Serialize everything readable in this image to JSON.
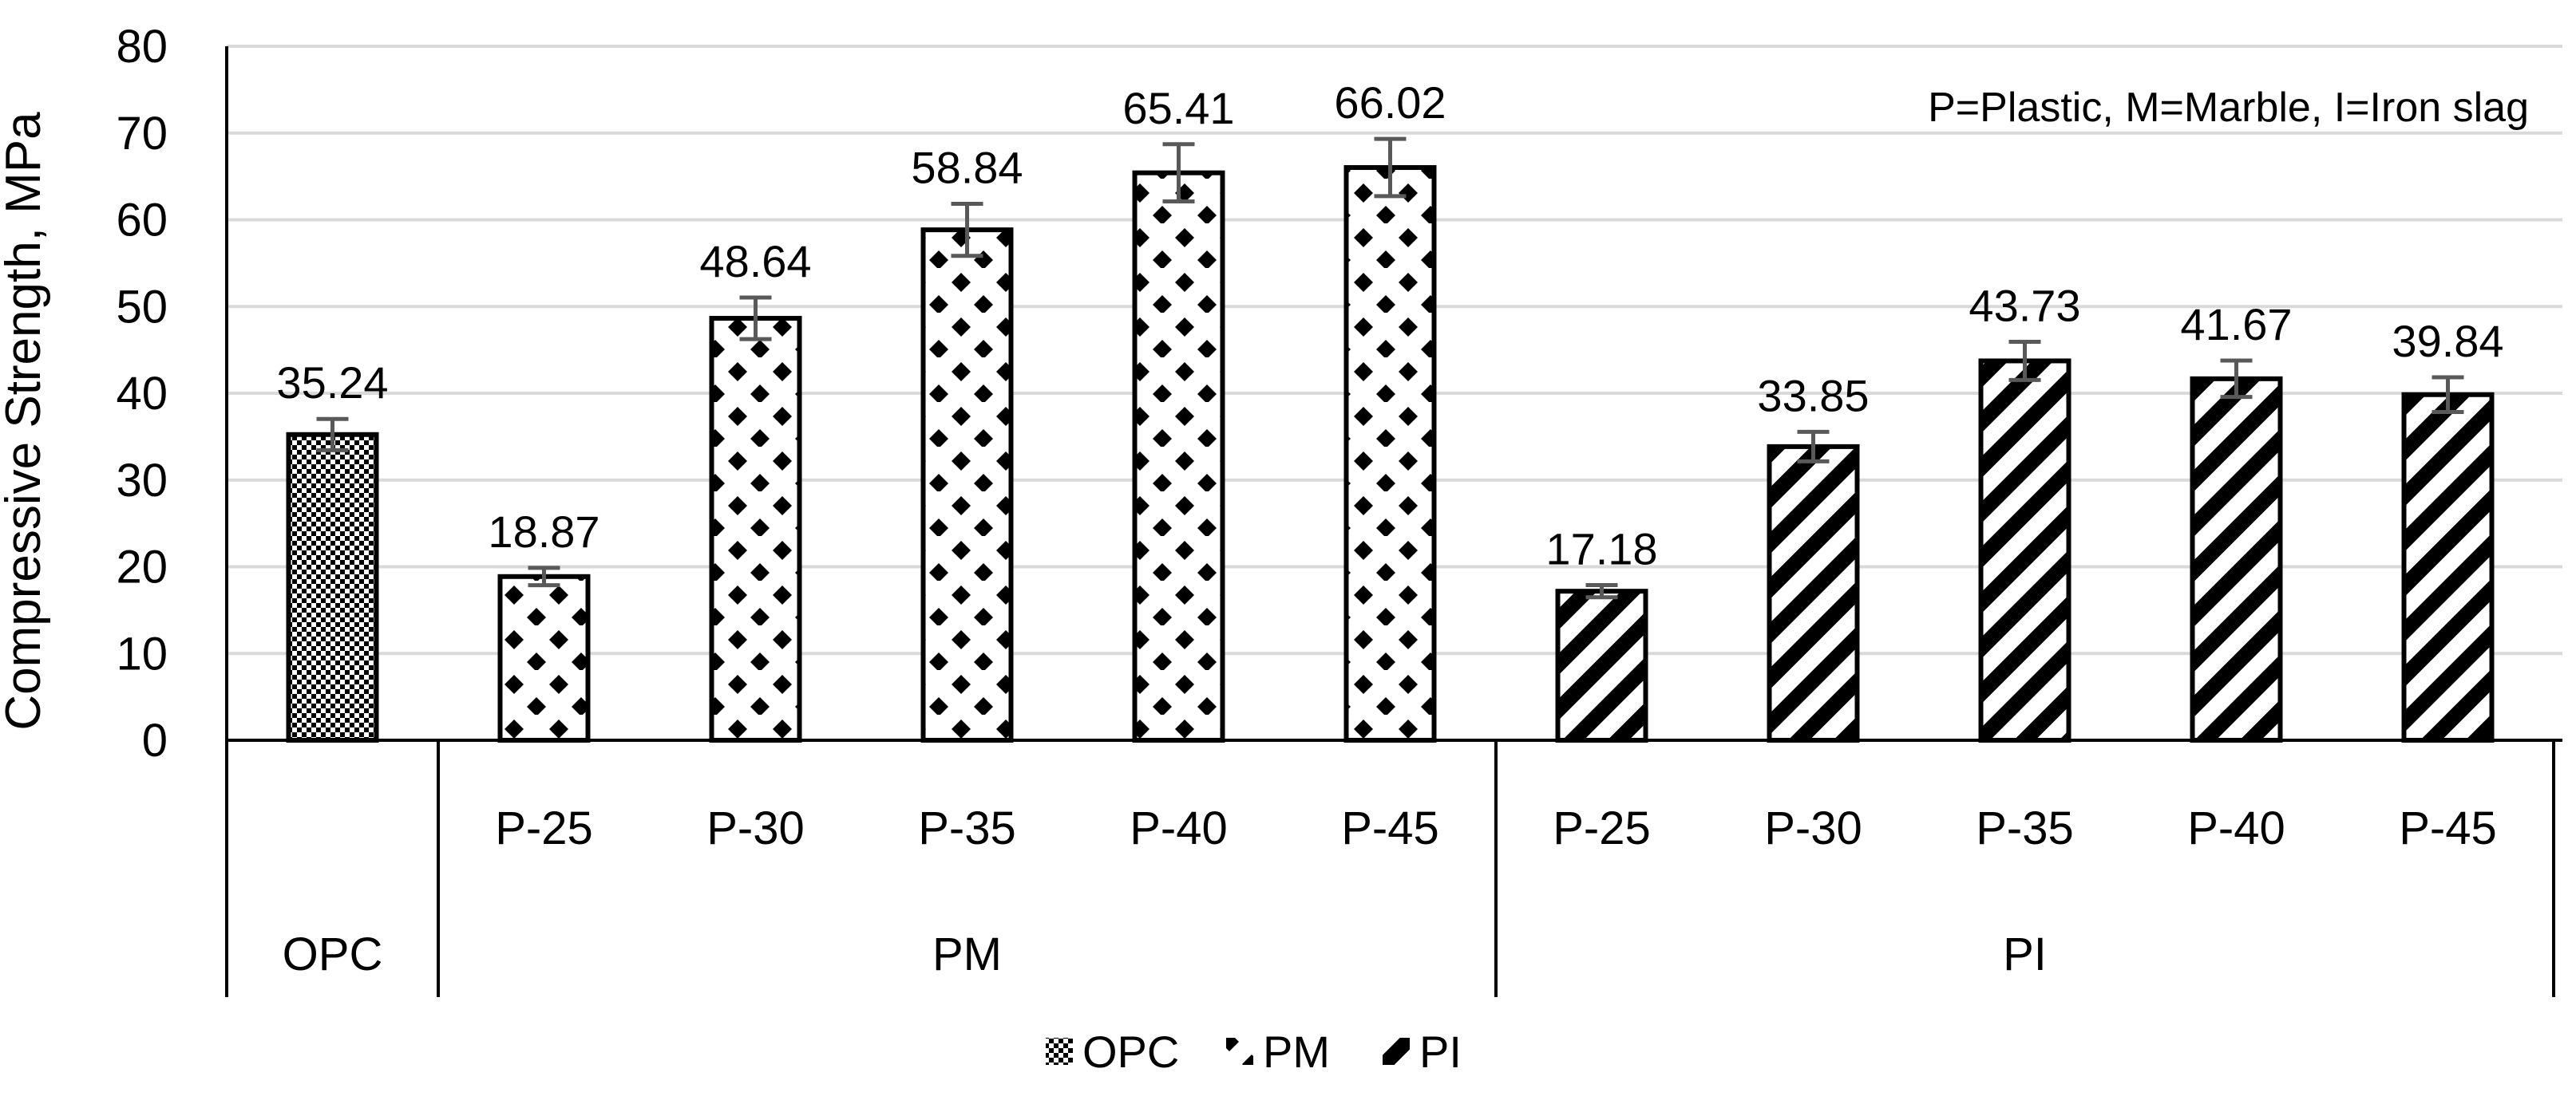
{
  "chart_data": {
    "type": "bar",
    "title": "",
    "ylabel": "Compressive Strength, MPa",
    "xlabel": "",
    "ylim": [
      0,
      80
    ],
    "yticks": [
      0,
      10,
      20,
      30,
      40,
      50,
      60,
      70,
      80
    ],
    "grid": true,
    "annotation": "P=Plastic, M=Marble, I=Iron slag",
    "legend_position": "bottom",
    "groups": [
      {
        "name": "OPC",
        "series": "OPC",
        "categories": [
          ""
        ],
        "values": [
          35.24
        ],
        "errors": [
          1.8
        ]
      },
      {
        "name": "PM",
        "series": "PM",
        "categories": [
          "P-25",
          "P-30",
          "P-35",
          "P-40",
          "P-45"
        ],
        "values": [
          18.87,
          48.64,
          58.84,
          65.41,
          66.02
        ],
        "errors": [
          1.0,
          2.4,
          3.0,
          3.3,
          3.3
        ]
      },
      {
        "name": "PI",
        "series": "PI",
        "categories": [
          "P-25",
          "P-30",
          "P-35",
          "P-40",
          "P-45"
        ],
        "values": [
          17.18,
          33.85,
          43.73,
          41.67,
          39.84
        ],
        "errors": [
          0.7,
          1.7,
          2.2,
          2.1,
          2.0
        ]
      }
    ],
    "legend": [
      {
        "name": "OPC",
        "pattern": "checker"
      },
      {
        "name": "PM",
        "pattern": "diamonds"
      },
      {
        "name": "PI",
        "pattern": "stripes"
      }
    ]
  }
}
